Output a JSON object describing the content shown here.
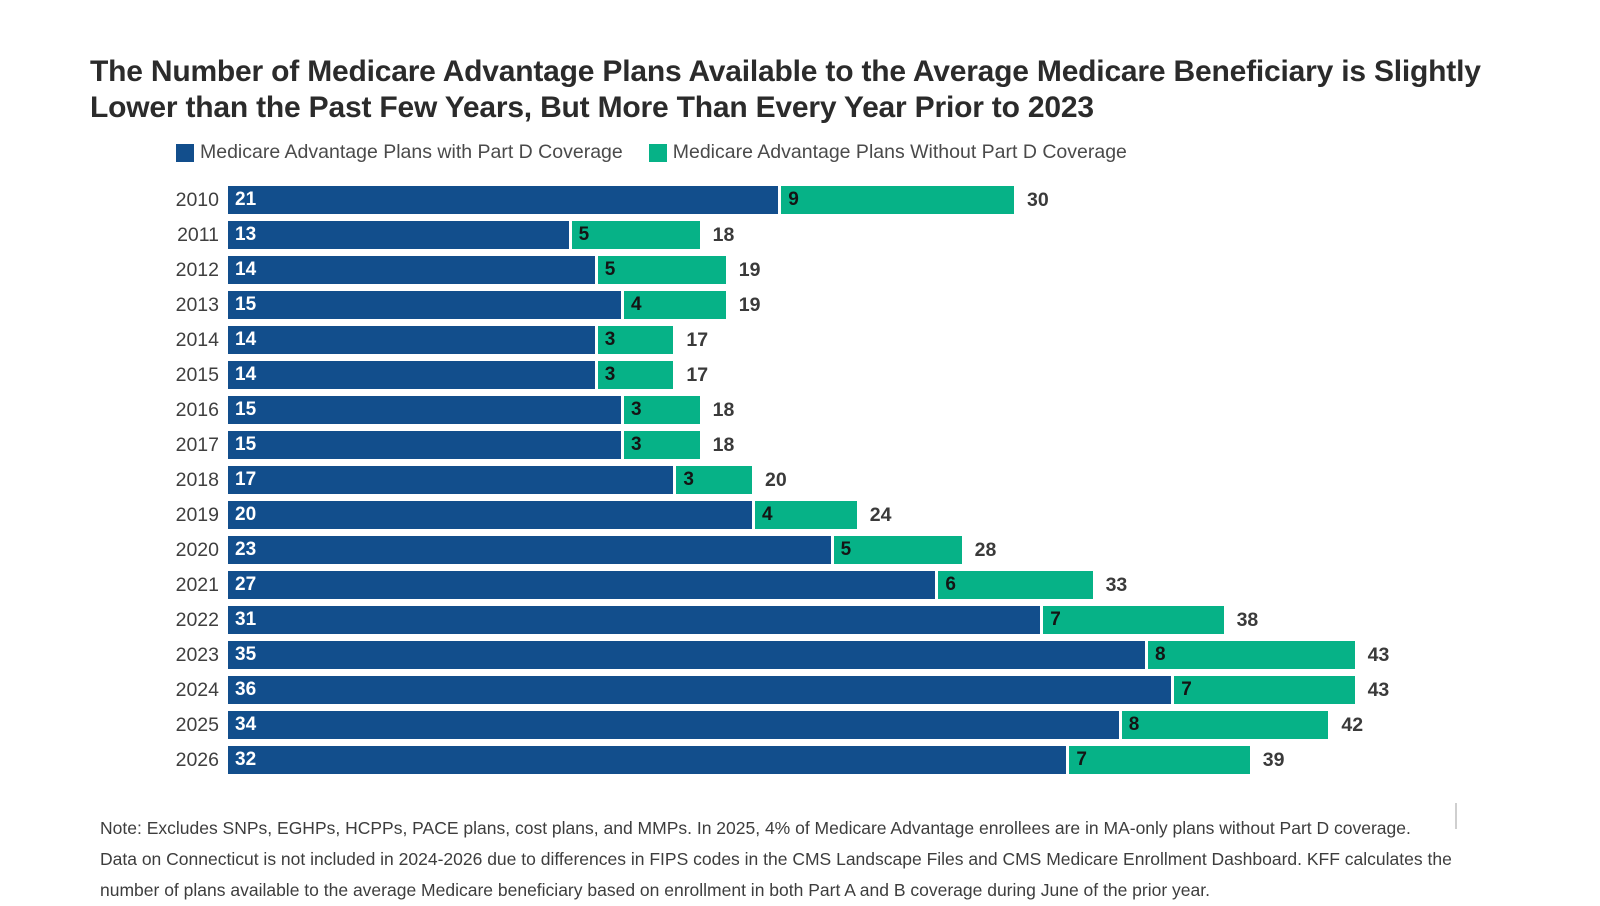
{
  "title": "The Number of Medicare Advantage Plans Available to the Average Medicare Beneficiary is Slightly Lower than the Past Few Years, But More Than Every Year Prior to 2023",
  "colors": {
    "with_partd_blue": "#124E8C",
    "without_partd_green": "#06B287"
  },
  "legend": {
    "items": [
      {
        "label": "Medicare Advantage Plans with Part D Coverage",
        "color": "#124E8C"
      },
      {
        "label": "Medicare Advantage Plans Without Part D Coverage",
        "color": "#06B287"
      }
    ]
  },
  "chart_data": {
    "type": "bar",
    "orientation": "horizontal",
    "stacked": true,
    "title": "The Number of Medicare Advantage Plans Available to the Average Medicare Beneficiary is Slightly Lower than the Past Few Years, But More Than Every Year Prior to 2023",
    "categories": [
      "2010",
      "2011",
      "2012",
      "2013",
      "2014",
      "2015",
      "2016",
      "2017",
      "2018",
      "2019",
      "2020",
      "2021",
      "2022",
      "2023",
      "2024",
      "2025",
      "2026"
    ],
    "series": [
      {
        "name": "Medicare Advantage Plans with Part D Coverage",
        "color": "#124E8C",
        "values": [
          21,
          13,
          14,
          15,
          14,
          14,
          15,
          15,
          17,
          20,
          23,
          27,
          31,
          35,
          36,
          34,
          32
        ]
      },
      {
        "name": "Medicare Advantage Plans Without Part D Coverage",
        "color": "#06B287",
        "values": [
          9,
          5,
          5,
          4,
          3,
          3,
          3,
          3,
          3,
          4,
          5,
          6,
          7,
          8,
          7,
          8,
          7
        ]
      }
    ],
    "totals": [
      30,
      18,
      19,
      19,
      17,
      17,
      18,
      18,
      20,
      24,
      28,
      33,
      38,
      43,
      43,
      42,
      39
    ],
    "xlim": [
      0,
      43
    ],
    "grid": false,
    "legend_position": "top",
    "value_labels": "inside-start",
    "total_labels": "outside-end"
  },
  "note": "Note: Excludes SNPs, EGHPs, HCPPs, PACE plans, cost plans, and MMPs. In 2025, 4% of Medicare Advantage enrollees are in MA-only plans without Part D coverage. Data on Connecticut is not included in 2024-2026 due to differences in FIPS codes in the CMS Landscape Files and CMS Medicare Enrollment Dashboard. KFF calculates the number of plans available to the average Medicare beneficiary based on enrollment in both Part A and B coverage during June of the prior year."
}
